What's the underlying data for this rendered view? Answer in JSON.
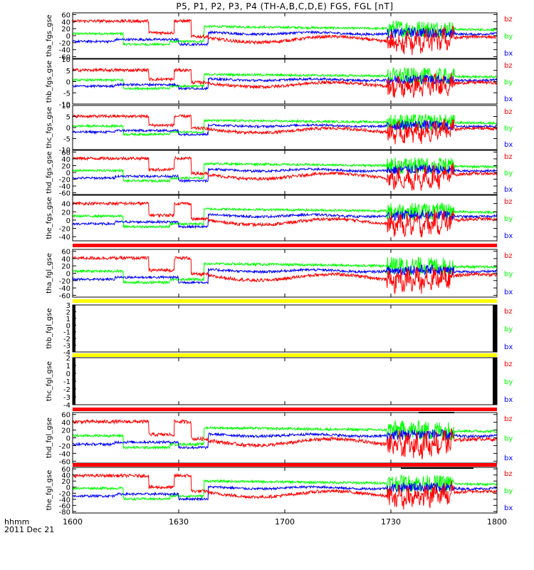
{
  "title": "P5, P1, P2, P3, P4 (TH-A,B,C,D,E) FGS, FGL [nT]",
  "time_axis": {
    "label": "hhmm",
    "date": "2011 Dec 21",
    "ticks": [
      "1600",
      "1630",
      "1700",
      "1730",
      "1800"
    ]
  },
  "colors": {
    "bx": "#0000ff",
    "by": "#00ff00",
    "bz": "#ff0000",
    "yellow": "#ffff00"
  },
  "chart_data": [
    {
      "type": "line",
      "ylabel": "tha_fgs_gse",
      "ylim": [
        -65,
        65
      ],
      "yticks": [
        60,
        40,
        20,
        0,
        -20,
        -40,
        -60
      ],
      "series": [
        {
          "name": "bz"
        },
        {
          "name": "by"
        },
        {
          "name": "bx"
        }
      ],
      "status_bar": null
    },
    {
      "type": "line",
      "ylabel": "thb_fgs_gse",
      "ylim": [
        -10,
        10
      ],
      "yticks": [
        10,
        5,
        0,
        -5,
        -10
      ],
      "series": [
        {
          "name": "bz"
        },
        {
          "name": "by"
        },
        {
          "name": "bx"
        }
      ],
      "status_bar": null
    },
    {
      "type": "line",
      "ylabel": "thc_fgs_gse",
      "ylim": [
        -10,
        10
      ],
      "yticks": [
        10,
        5,
        0,
        -5,
        -10
      ],
      "series": [
        {
          "name": "bz"
        },
        {
          "name": "by"
        },
        {
          "name": "bx"
        }
      ],
      "status_bar": null
    },
    {
      "type": "line",
      "ylabel": "thd_fgs_gse",
      "ylim": [
        -65,
        65
      ],
      "yticks": [
        60,
        40,
        20,
        0,
        -20,
        -40,
        -60
      ],
      "series": [
        {
          "name": "bz"
        },
        {
          "name": "by"
        },
        {
          "name": "bx"
        }
      ],
      "status_bar": null
    },
    {
      "type": "line",
      "ylabel": "the_fgs_gse",
      "ylim": [
        -50,
        60
      ],
      "yticks": [
        40,
        20,
        0,
        -20,
        -40
      ],
      "series": [
        {
          "name": "bz"
        },
        {
          "name": "by"
        },
        {
          "name": "bx"
        }
      ],
      "status_bar": "red"
    },
    {
      "type": "line",
      "ylabel": "tha_fgl_gse",
      "ylim": [
        -65,
        65
      ],
      "yticks": [
        60,
        40,
        20,
        0,
        -20,
        -40,
        -60
      ],
      "series": [
        {
          "name": "bz"
        },
        {
          "name": "by"
        },
        {
          "name": "bx"
        }
      ],
      "status_bar": "yellow"
    },
    {
      "type": "line",
      "ylabel": "thb_fgl_gse",
      "ylim": [
        -4,
        3
      ],
      "yticks": [
        3,
        2,
        1,
        0,
        -1,
        -2,
        -3,
        -4
      ],
      "series": [
        {
          "name": "bz"
        },
        {
          "name": "by"
        },
        {
          "name": "bx"
        }
      ],
      "status_bar": "yellow"
    },
    {
      "type": "line",
      "ylabel": "thc_fgl_gse",
      "ylim": [
        -4,
        2
      ],
      "yticks": [
        2,
        1,
        0,
        -1,
        -2,
        -3,
        -4
      ],
      "series": [
        {
          "name": "bz"
        },
        {
          "name": "by"
        },
        {
          "name": "bx"
        }
      ],
      "status_bar": "red"
    },
    {
      "type": "line",
      "ylabel": "thd_fgl_gse",
      "ylim": [
        -65,
        65
      ],
      "yticks": [
        60,
        40,
        20,
        0,
        -20,
        -40,
        -60
      ],
      "series": [
        {
          "name": "bz"
        },
        {
          "name": "by"
        },
        {
          "name": "bx"
        }
      ],
      "status_bar": "red"
    },
    {
      "type": "line",
      "ylabel": "the_fgl_gse",
      "ylim": [
        -85,
        65
      ],
      "yticks": [
        60,
        40,
        20,
        0,
        -20,
        -40,
        -60,
        -80
      ],
      "series": [
        {
          "name": "bz"
        },
        {
          "name": "by"
        },
        {
          "name": "bx"
        }
      ],
      "status_bar": null
    }
  ]
}
